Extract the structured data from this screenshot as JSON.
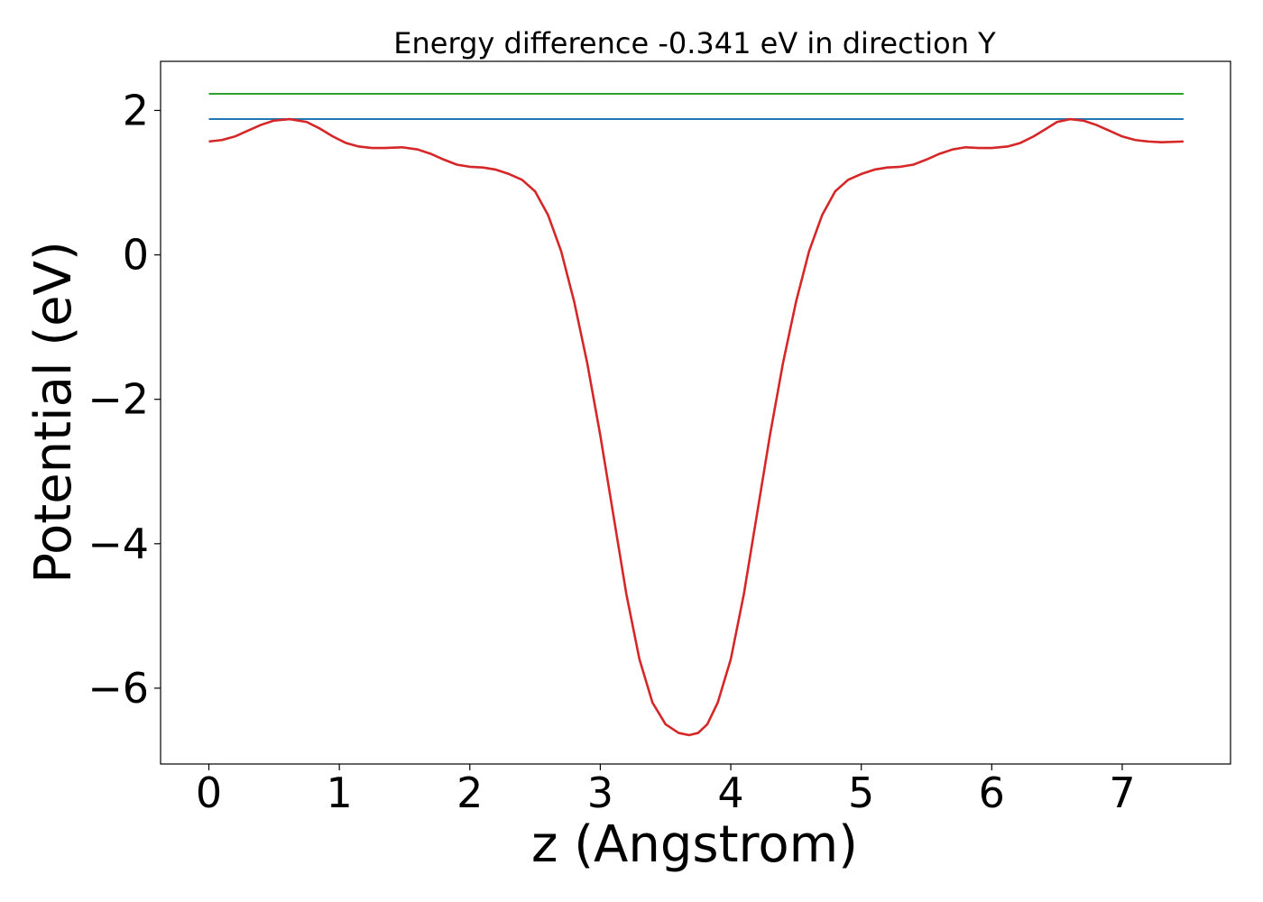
{
  "chart_data": {
    "type": "line",
    "title": "Energy difference -0.341 eV in direction Y",
    "xlabel": "z (Angstrom)",
    "ylabel": "Potential (eV)",
    "xlim": [
      -0.37,
      7.83
    ],
    "ylim": [
      -7.05,
      2.68
    ],
    "xticks": [
      0,
      1,
      2,
      3,
      4,
      5,
      6,
      7
    ],
    "xtick_labels": [
      "0",
      "1",
      "2",
      "3",
      "4",
      "5",
      "6",
      "7"
    ],
    "yticks": [
      2,
      0,
      -2,
      -4,
      -6
    ],
    "ytick_labels": [
      "2",
      "0",
      "−2",
      "−4",
      "−6"
    ],
    "grid": false,
    "series": [
      {
        "color": "#2ca02c",
        "x": [
          0,
          7.47
        ],
        "y": [
          2.23,
          2.23
        ]
      },
      {
        "color": "#1f77b4",
        "x": [
          0,
          7.47
        ],
        "y": [
          1.88,
          1.88
        ]
      },
      {
        "color": "#d62728",
        "x": [
          0,
          0.1,
          0.2,
          0.3,
          0.4,
          0.5,
          0.62,
          0.75,
          0.85,
          0.95,
          1.05,
          1.15,
          1.25,
          1.35,
          1.48,
          1.6,
          1.7,
          1.8,
          1.9,
          2.0,
          2.1,
          2.2,
          2.3,
          2.4,
          2.5,
          2.6,
          2.7,
          2.8,
          2.9,
          3.0,
          3.1,
          3.2,
          3.3,
          3.4,
          3.5,
          3.6,
          3.68,
          3.75,
          3.82,
          3.9,
          4.0,
          4.1,
          4.2,
          4.3,
          4.4,
          4.5,
          4.6,
          4.7,
          4.8,
          4.9,
          5.0,
          5.1,
          5.2,
          5.3,
          5.4,
          5.5,
          5.6,
          5.7,
          5.8,
          5.9,
          6.0,
          6.12,
          6.22,
          6.32,
          6.42,
          6.5,
          6.6,
          6.7,
          6.8,
          6.9,
          7.0,
          7.1,
          7.2,
          7.3,
          7.47
        ],
        "y": [
          1.57,
          1.59,
          1.64,
          1.72,
          1.8,
          1.86,
          1.88,
          1.84,
          1.75,
          1.64,
          1.55,
          1.5,
          1.48,
          1.48,
          1.49,
          1.46,
          1.4,
          1.32,
          1.25,
          1.22,
          1.21,
          1.18,
          1.12,
          1.04,
          0.88,
          0.55,
          0.05,
          -0.65,
          -1.5,
          -2.5,
          -3.6,
          -4.7,
          -5.6,
          -6.2,
          -6.5,
          -6.62,
          -6.65,
          -6.62,
          -6.5,
          -6.2,
          -5.6,
          -4.7,
          -3.6,
          -2.5,
          -1.5,
          -0.65,
          0.05,
          0.55,
          0.88,
          1.04,
          1.12,
          1.18,
          1.21,
          1.22,
          1.25,
          1.32,
          1.4,
          1.46,
          1.49,
          1.48,
          1.48,
          1.5,
          1.55,
          1.64,
          1.75,
          1.84,
          1.88,
          1.86,
          1.8,
          1.72,
          1.64,
          1.59,
          1.57,
          1.56,
          1.57
        ]
      }
    ]
  }
}
